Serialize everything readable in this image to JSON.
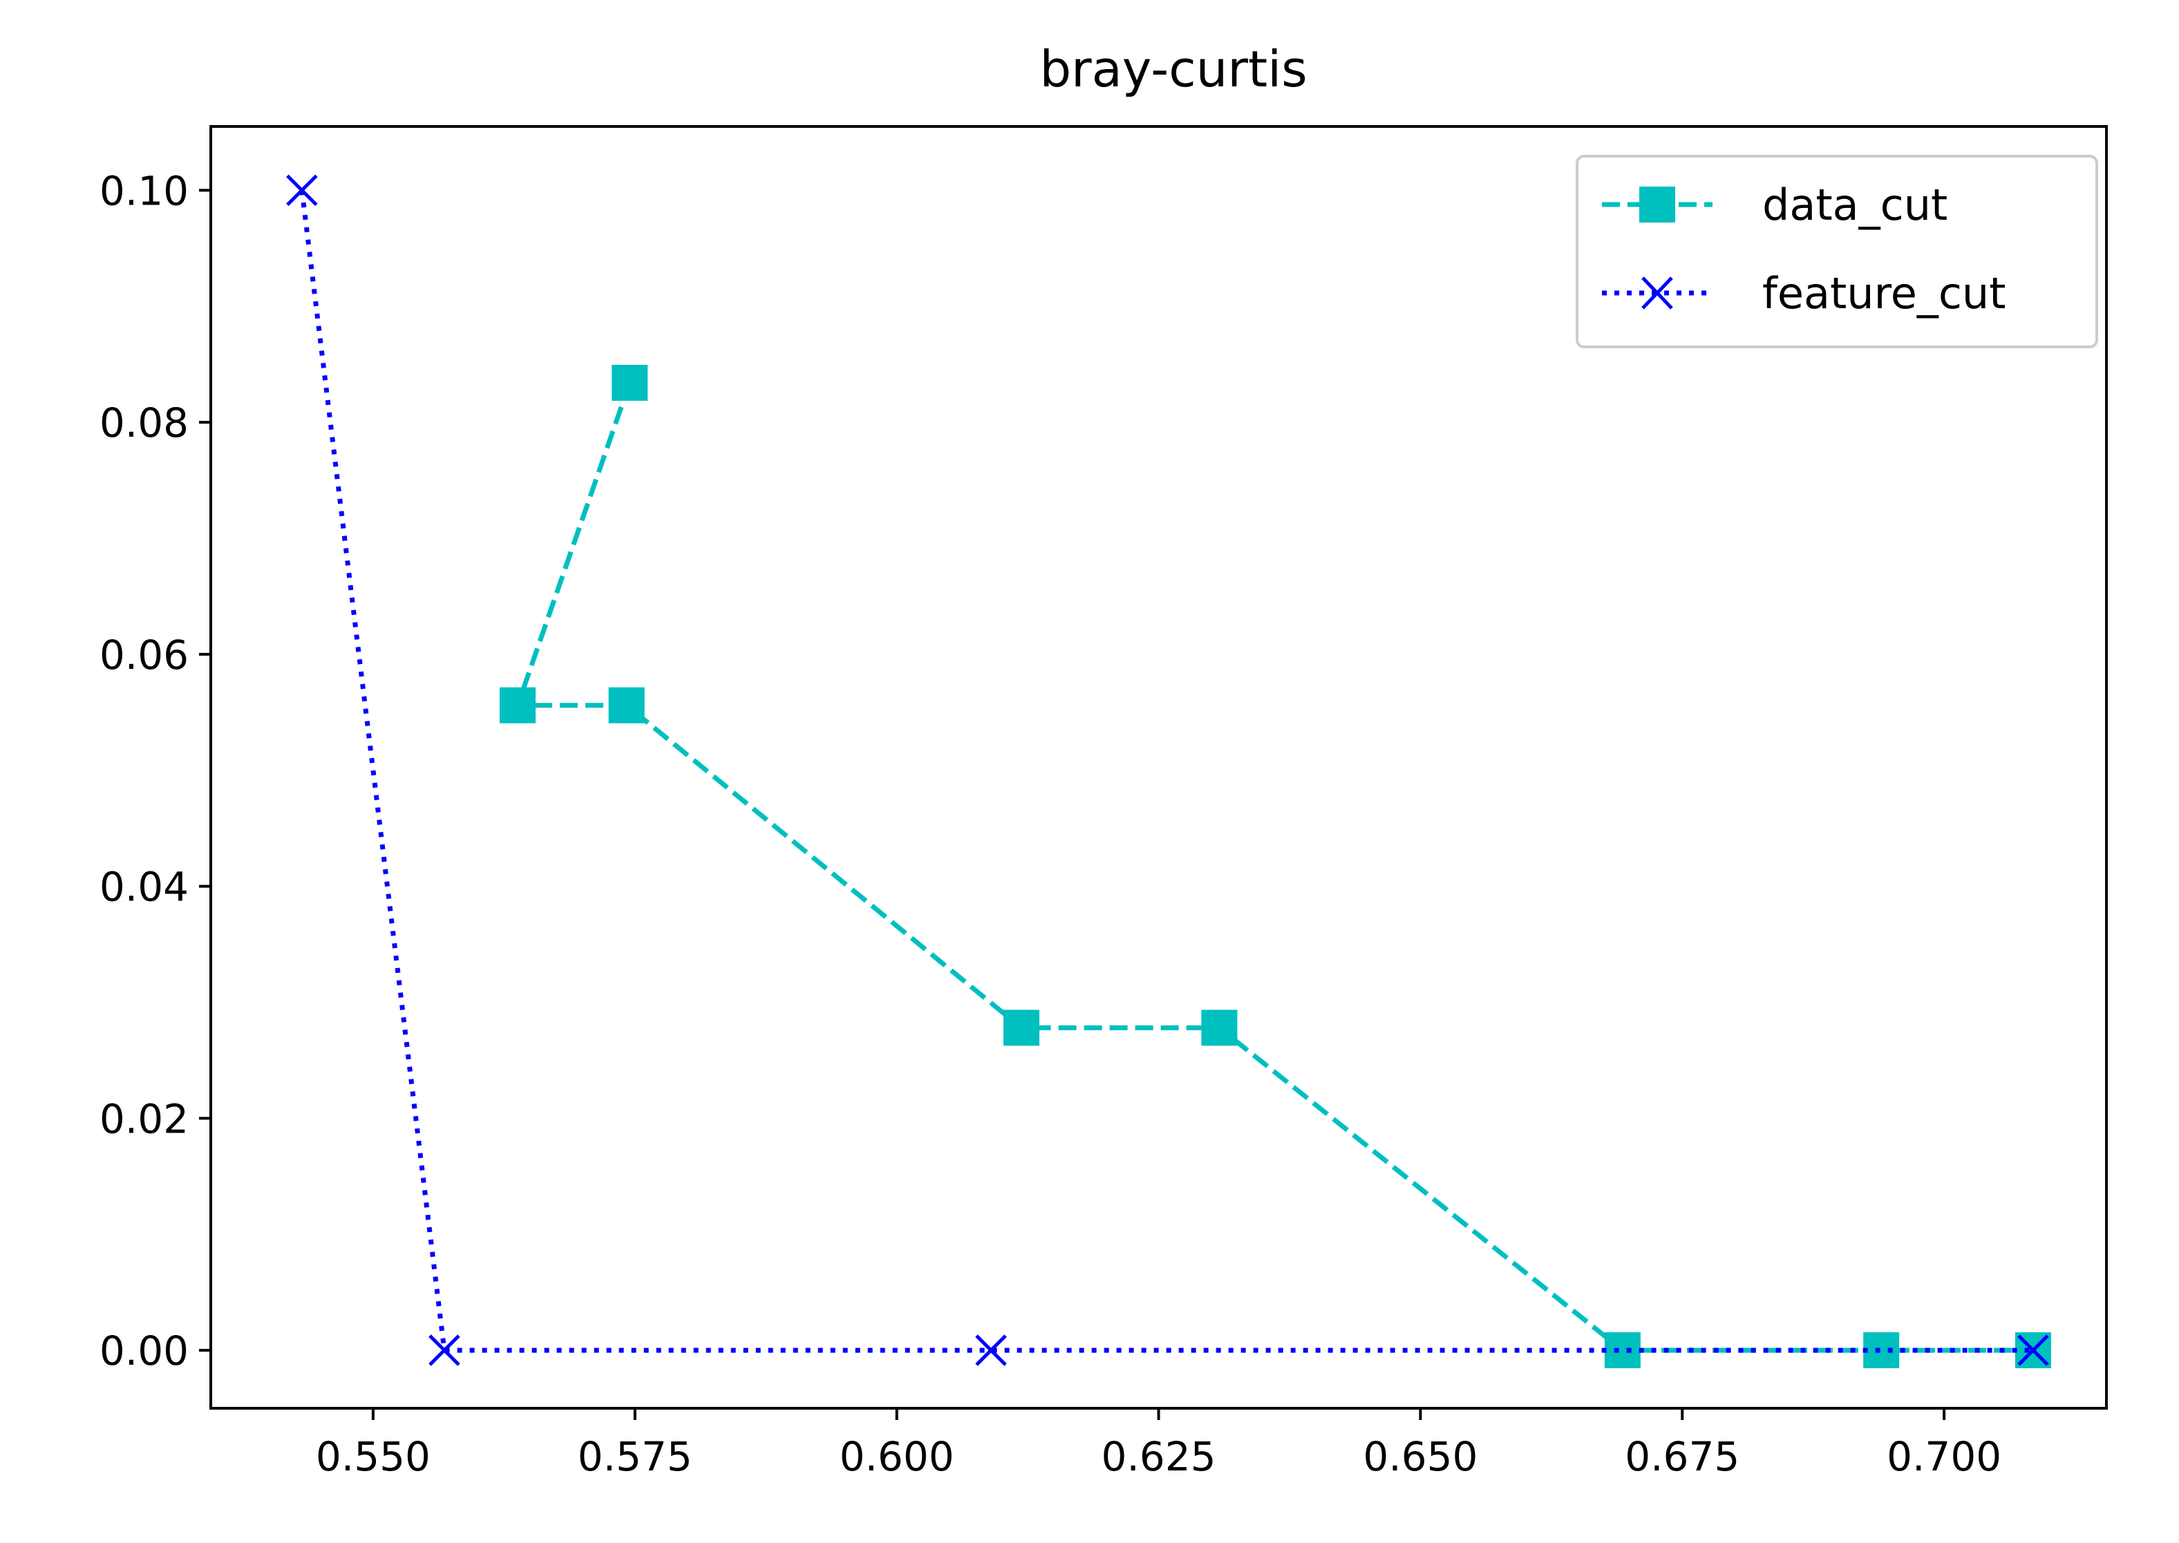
{
  "chart_data": {
    "type": "line",
    "title": "bray-curtis",
    "xlabel": "",
    "ylabel": "",
    "xlim": [
      0.5345,
      0.7155
    ],
    "ylim": [
      -0.005,
      0.1055
    ],
    "x_ticks": [
      0.55,
      0.575,
      0.6,
      0.625,
      0.65,
      0.675,
      0.7
    ],
    "x_tick_labels": [
      "0.550",
      "0.575",
      "0.600",
      "0.625",
      "0.650",
      "0.675",
      "0.700"
    ],
    "y_ticks": [
      0.0,
      0.02,
      0.04,
      0.06,
      0.08,
      0.1
    ],
    "y_tick_labels": [
      "0.00",
      "0.02",
      "0.04",
      "0.06",
      "0.08",
      "0.10"
    ],
    "grid": false,
    "legend": "top-right",
    "series": [
      {
        "name": "data_cut",
        "color": "#00bfbf",
        "line_style": "dashed",
        "marker": "square",
        "x": [
          0.5745,
          0.5638,
          0.5742,
          0.6119,
          0.6308,
          0.6693,
          0.694,
          0.7085
        ],
        "y": [
          0.0834,
          0.0556,
          0.0556,
          0.0278,
          0.0278,
          0.0,
          0.0,
          0.0
        ]
      },
      {
        "name": "feature_cut",
        "color": "#0000ff",
        "line_style": "dotted",
        "marker": "x",
        "x": [
          0.5432,
          0.5568,
          0.609,
          0.7085
        ],
        "y": [
          0.1,
          0.0,
          0.0,
          0.0
        ]
      }
    ]
  }
}
